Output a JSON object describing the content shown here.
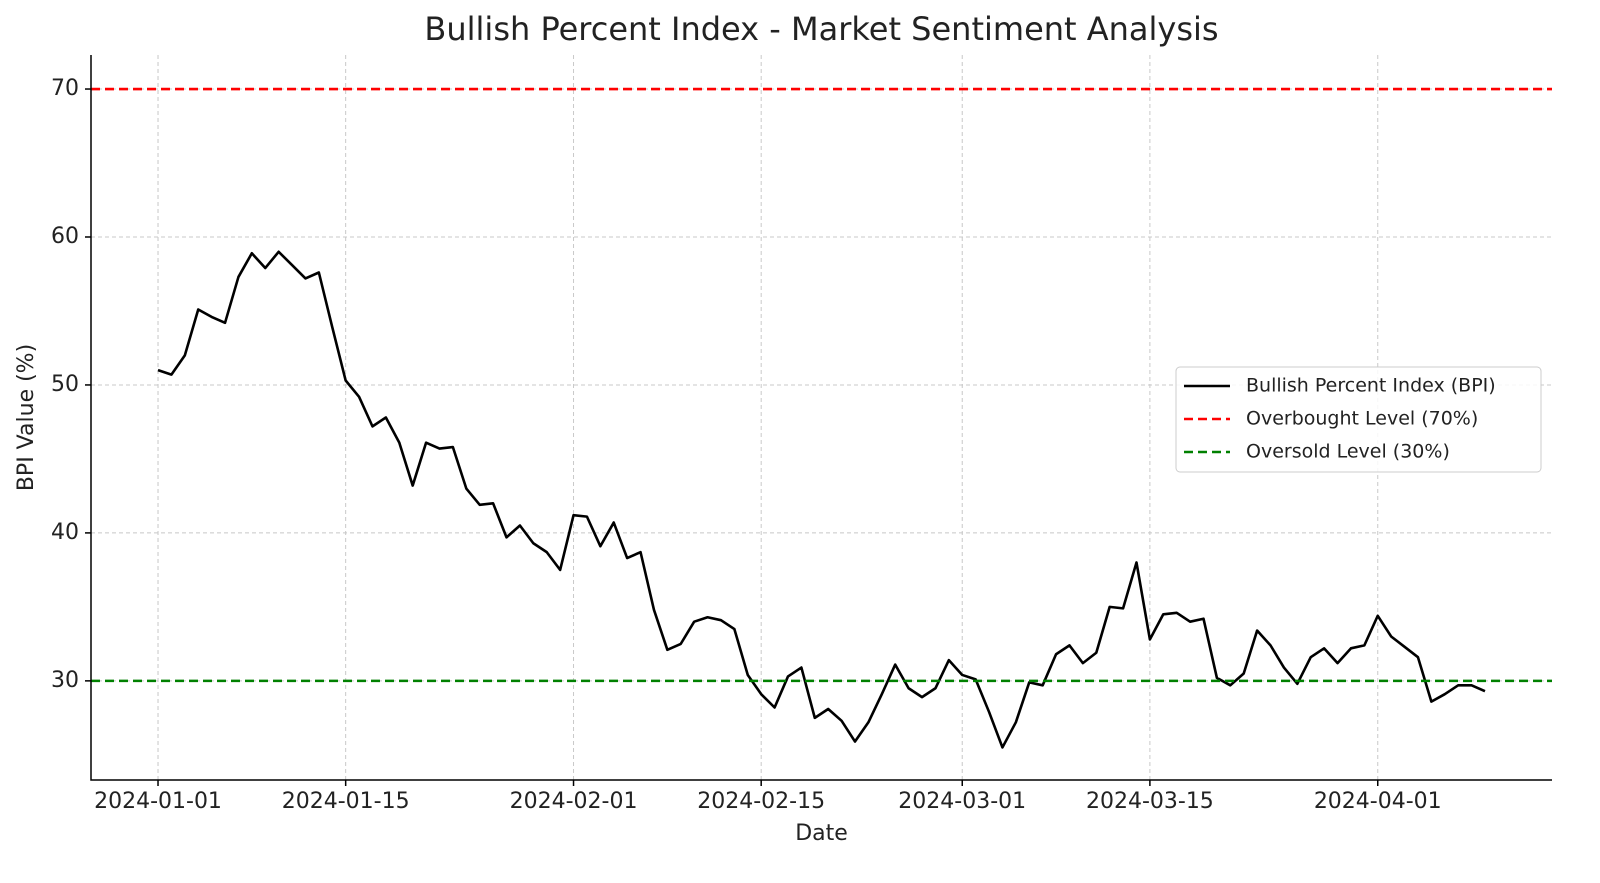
{
  "chart_data": {
    "type": "line",
    "title": "Bullish Percent Index - Market Sentiment Analysis",
    "x_label": "Date",
    "y_label": "BPI Value (%)",
    "x": [
      "2024-01-01",
      "2024-01-02",
      "2024-01-03",
      "2024-01-04",
      "2024-01-05",
      "2024-01-06",
      "2024-01-07",
      "2024-01-08",
      "2024-01-09",
      "2024-01-10",
      "2024-01-11",
      "2024-01-12",
      "2024-01-13",
      "2024-01-14",
      "2024-01-15",
      "2024-01-16",
      "2024-01-17",
      "2024-01-18",
      "2024-01-19",
      "2024-01-20",
      "2024-01-21",
      "2024-01-22",
      "2024-01-23",
      "2024-01-24",
      "2024-01-25",
      "2024-01-26",
      "2024-01-27",
      "2024-01-28",
      "2024-01-29",
      "2024-01-30",
      "2024-01-31",
      "2024-02-01",
      "2024-02-02",
      "2024-02-03",
      "2024-02-04",
      "2024-02-05",
      "2024-02-06",
      "2024-02-07",
      "2024-02-08",
      "2024-02-09",
      "2024-02-10",
      "2024-02-11",
      "2024-02-12",
      "2024-02-13",
      "2024-02-14",
      "2024-02-15",
      "2024-02-16",
      "2024-02-17",
      "2024-02-18",
      "2024-02-19",
      "2024-02-20",
      "2024-02-21",
      "2024-02-22",
      "2024-02-23",
      "2024-02-24",
      "2024-02-25",
      "2024-02-26",
      "2024-02-27",
      "2024-02-28",
      "2024-02-29",
      "2024-03-01",
      "2024-03-02",
      "2024-03-03",
      "2024-03-04",
      "2024-03-05",
      "2024-03-06",
      "2024-03-07",
      "2024-03-08",
      "2024-03-09",
      "2024-03-10",
      "2024-03-11",
      "2024-03-12",
      "2024-03-13",
      "2024-03-14",
      "2024-03-15",
      "2024-03-16",
      "2024-03-17",
      "2024-03-18",
      "2024-03-19",
      "2024-03-20",
      "2024-03-21",
      "2024-03-22",
      "2024-03-23",
      "2024-03-24",
      "2024-03-25",
      "2024-03-26",
      "2024-03-27",
      "2024-03-28",
      "2024-03-29",
      "2024-03-30",
      "2024-03-31",
      "2024-04-01",
      "2024-04-02",
      "2024-04-03",
      "2024-04-04",
      "2024-04-05",
      "2024-04-06",
      "2024-04-07",
      "2024-04-08",
      "2024-04-09"
    ],
    "series": [
      {
        "name": "Bullish Percent Index (BPI)",
        "color": "#000000",
        "values": [
          51.0,
          50.7,
          52.0,
          55.1,
          54.6,
          54.2,
          57.3,
          58.9,
          57.9,
          59.0,
          58.1,
          57.2,
          57.6,
          53.9,
          50.3,
          49.2,
          47.2,
          47.8,
          46.1,
          43.2,
          46.1,
          45.7,
          45.8,
          43.0,
          41.9,
          42.0,
          39.7,
          40.5,
          39.3,
          38.7,
          37.5,
          41.2,
          41.1,
          39.1,
          40.7,
          38.3,
          38.7,
          34.8,
          32.1,
          32.5,
          34.0,
          34.3,
          34.1,
          33.5,
          30.4,
          29.1,
          28.2,
          30.3,
          30.9,
          27.5,
          28.1,
          27.3,
          25.9,
          27.2,
          29.1,
          31.1,
          29.5,
          28.9,
          29.5,
          31.4,
          30.4,
          30.1,
          27.9,
          25.5,
          27.2,
          29.9,
          29.7,
          31.8,
          32.4,
          31.2,
          31.9,
          35.0,
          34.9,
          38.0,
          32.8,
          34.5,
          34.6,
          34.0,
          34.2,
          30.2,
          29.7,
          30.5,
          33.4,
          32.4,
          30.9,
          29.8,
          31.6,
          32.2,
          31.2,
          32.2,
          32.4,
          34.4,
          33.0,
          32.3,
          31.6,
          28.6,
          29.1,
          29.7,
          29.7,
          29.3
        ]
      }
    ],
    "hlines": [
      {
        "name": "Overbought Level (70%)",
        "value": 70,
        "color": "#ff0000"
      },
      {
        "name": "Oversold Level (30%)",
        "value": 30,
        "color": "#008000"
      }
    ],
    "xlim": [
      "2023-12-27",
      "2024-04-14"
    ],
    "xticks": [
      "2024-01-01",
      "2024-01-15",
      "2024-02-01",
      "2024-02-15",
      "2024-03-01",
      "2024-03-15",
      "2024-04-01"
    ],
    "ylim": [
      23.3,
      72.3
    ],
    "yticks": [
      30,
      40,
      50,
      60,
      70
    ],
    "grid": true,
    "legend": "center right"
  }
}
